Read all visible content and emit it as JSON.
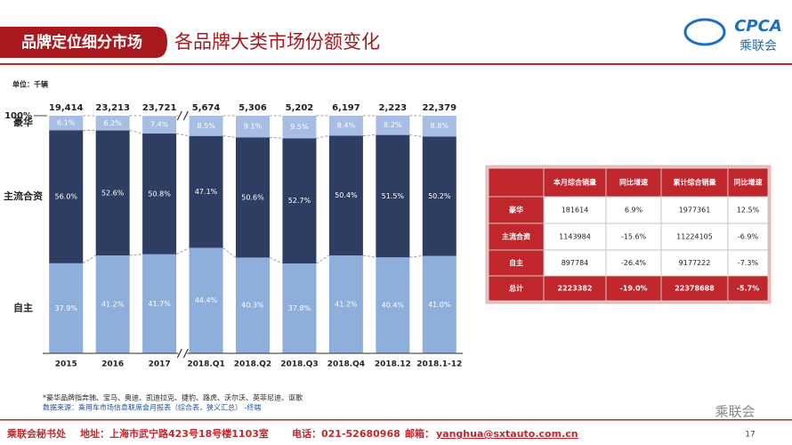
{
  "header": {
    "tab": "品牌定位细分市场",
    "title": "各品牌大类市场份额变化",
    "logo": "CPCA",
    "logo_sub": "乘联会"
  },
  "chart_data": {
    "type": "stacked_bar",
    "unit": "单位：千辆",
    "categories": [
      "2015",
      "2016",
      "2017",
      "2018.Q1",
      "2018.Q2",
      "2018.Q3",
      "2018.Q4",
      "2018.12",
      "2018.1-12"
    ],
    "totals": [
      {
        "value": 19414,
        "label": "19,414"
      },
      {
        "value": 23213,
        "label": "23,213"
      },
      {
        "value": 23721,
        "label": "23,721"
      },
      {
        "value": 5674,
        "label": "5,674"
      },
      {
        "value": 5306,
        "label": "5,306"
      },
      {
        "value": 5202,
        "label": "5,202"
      },
      {
        "value": 6197,
        "label": "6,197"
      },
      {
        "value": 2223,
        "label": "2,223"
      },
      {
        "value": 22379,
        "label": "22,379"
      }
    ],
    "series": [
      {
        "name": "自主",
        "color": "#8eaedb",
        "values": [
          37.9,
          41.2,
          41.7,
          44.4,
          40.3,
          37.8,
          41.2,
          40.4,
          41.0
        ],
        "value_labels": [
          "37.9%",
          "41.2%",
          "41.7%",
          "44.4%",
          "40.3%",
          "37.8%",
          "41.2%",
          "40.4%",
          "41.0%"
        ]
      },
      {
        "name": "主流合资",
        "color": "#2e3e63",
        "values": [
          56.0,
          52.6,
          50.8,
          47.1,
          50.6,
          52.7,
          50.4,
          51.5,
          50.2
        ],
        "value_labels": [
          "56.0%",
          "52.6%",
          "50.8%",
          "47.1%",
          "50.6%",
          "52.7%",
          "50.4%",
          "51.5%",
          "50.2%"
        ]
      },
      {
        "name": "豪华",
        "color": "#a7bde3",
        "values": [
          6.1,
          6.2,
          7.4,
          8.5,
          9.1,
          9.5,
          8.4,
          8.2,
          8.8
        ],
        "value_labels": [
          "6.1%",
          "6.2%",
          "7.4%",
          "8.5%",
          "9.1%",
          "9.5%",
          "8.4%",
          "8.2%",
          "8.8%"
        ]
      }
    ],
    "ylim": [
      0,
      100
    ],
    "yticks": [
      {
        "value": 100,
        "label": "100%"
      }
    ]
  },
  "table": {
    "header": [
      "本月综合销量",
      "同比增速",
      "累计综合销量",
      "同比增速"
    ],
    "rows": [
      [
        "豪华",
        "181614",
        "6.9%",
        "1977361",
        "12.5%"
      ],
      [
        "主流合资",
        "1143984",
        "-15.6%",
        "11224105",
        "-6.9%"
      ],
      [
        "自主",
        "897784",
        "-26.4%",
        "9177222",
        "-7.3%"
      ],
      [
        "总计",
        "2223382",
        "-19.0%",
        "22378688",
        "-5.7%"
      ]
    ]
  },
  "notes": [
    "*豪华品牌指奔驰、宝马、奥迪、凯迪拉克、捷豹、路虎、沃尔沃、英菲尼迪、讴歌",
    "数据来源：乘用车市场信息联席会月报表（综合表，狭义汇总） -终端"
  ],
  "footer": {
    "org": "乘联会秘书处",
    "address": "地址：上海市武宁路423号18号楼1103室",
    "phone": "电话：021-52680968",
    "email_label": "邮箱：",
    "email": "yanghua@sxtauto.com.cn",
    "page": "17",
    "wechat": "乘联会"
  }
}
